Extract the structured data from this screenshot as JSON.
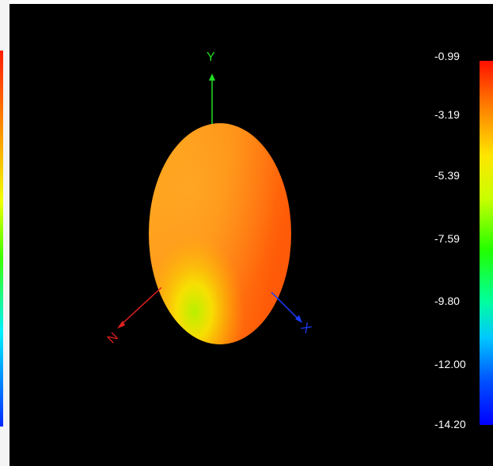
{
  "chart_data": {
    "type": "heatmap",
    "description_kind": "3d-radiation-pattern",
    "axes": [
      {
        "label": "Y",
        "color": "#22dd22"
      },
      {
        "label": "N",
        "color": "#e02020"
      },
      {
        "label": "X",
        "color": "#1a3cff"
      }
    ],
    "colorbar": {
      "ticks": [
        "-0.99",
        "-3.19",
        "-5.39",
        "-7.59",
        "-9.80",
        "-12.00",
        "-14.20"
      ],
      "max": -0.99,
      "min": -14.2,
      "colors": [
        "#ff1000",
        "#ff7a00",
        "#ffe600",
        "#c8ff00",
        "#22ff00",
        "#00ff9c",
        "#00c8ff",
        "#0050ff",
        "#0000ff"
      ]
    }
  }
}
